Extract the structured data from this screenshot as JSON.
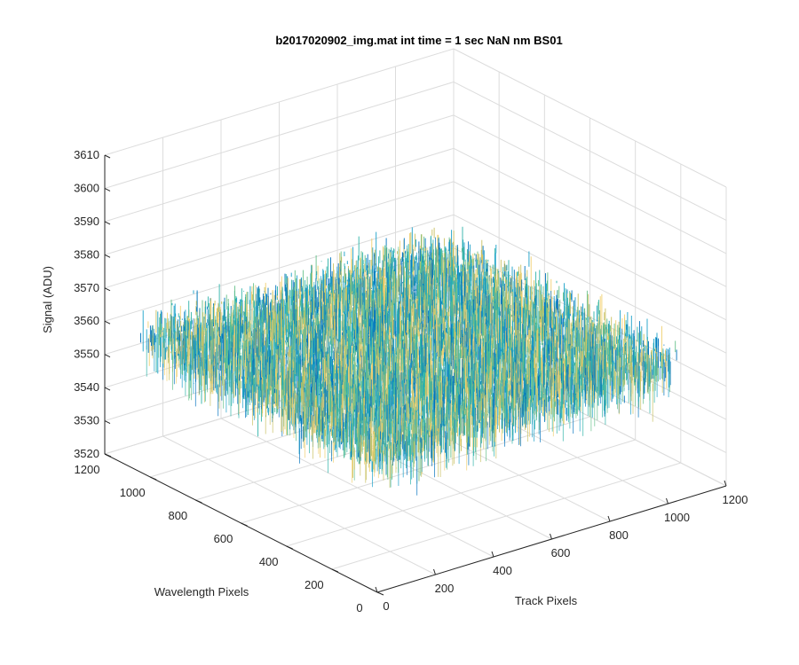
{
  "chart_data": {
    "type": "surface",
    "title": "b2017020902_img.mat int time = 1 sec  NaN nm BS01",
    "xlabel": "Track Pixels",
    "ylabel": "Wavelength Pixels",
    "zlabel": "Signal (ADU)",
    "xlim": [
      0,
      1200
    ],
    "ylim": [
      0,
      1200
    ],
    "zlim": [
      3520,
      3610
    ],
    "x_ticks": [
      "0",
      "200",
      "400",
      "600",
      "800",
      "1000",
      "1200"
    ],
    "y_ticks": [
      "0",
      "200",
      "400",
      "600",
      "800",
      "1000",
      "1200"
    ],
    "z_ticks": [
      "3520",
      "3530",
      "3540",
      "3550",
      "3560",
      "3570",
      "3580",
      "3590",
      "3600",
      "3610"
    ],
    "surface": {
      "x_range": [
        0,
        1024
      ],
      "y_range": [
        0,
        1024
      ],
      "mean_signal": 3562,
      "noise_min": 3530,
      "noise_max": 3605
    },
    "grid": true,
    "colormap": [
      "#0072bd",
      "#1aa0c8",
      "#2eb3a8",
      "#66c08a",
      "#c8c060",
      "#f0d070"
    ]
  }
}
